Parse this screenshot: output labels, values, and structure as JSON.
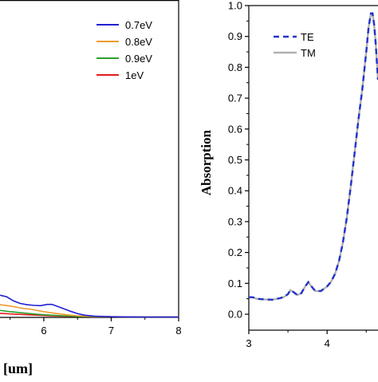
{
  "chart_data": [
    {
      "type": "line",
      "title": "",
      "xlabel": "[um]",
      "ylabel": "",
      "xlim": [
        5.35,
        8.0
      ],
      "ylim": [
        0.0,
        1.0
      ],
      "x_ticks": [
        6,
        7,
        8
      ],
      "x_tick_labels": [
        "6",
        "7",
        "8"
      ],
      "legend_position": "top-right",
      "series": [
        {
          "name": "0.7eV",
          "color": "#1f1fd4",
          "x": [
            5.35,
            5.45,
            5.55,
            5.65,
            5.75,
            5.85,
            5.95,
            6.05,
            6.12,
            6.2,
            6.3,
            6.4,
            6.5,
            6.6,
            6.75,
            7.0,
            7.5,
            8.0
          ],
          "y": [
            0.07,
            0.065,
            0.052,
            0.044,
            0.04,
            0.038,
            0.037,
            0.041,
            0.041,
            0.035,
            0.027,
            0.019,
            0.012,
            0.007,
            0.004,
            0.002,
            0.001,
            0.001
          ]
        },
        {
          "name": "0.8eV",
          "color": "#ee9a2e",
          "x": [
            5.35,
            5.5,
            5.6,
            5.7,
            5.8,
            5.9,
            6.0,
            6.1,
            6.2,
            6.35,
            6.5,
            6.75,
            7.0,
            7.5,
            8.0
          ],
          "y": [
            0.04,
            0.036,
            0.032,
            0.028,
            0.026,
            0.022,
            0.018,
            0.015,
            0.012,
            0.008,
            0.005,
            0.003,
            0.002,
            0.001,
            0.001
          ]
        },
        {
          "name": "0.9eV",
          "color": "#2ca02c",
          "x": [
            5.35,
            5.5,
            5.7,
            5.9,
            6.1,
            6.3,
            6.5,
            7.0,
            7.5,
            8.0
          ],
          "y": [
            0.022,
            0.018,
            0.014,
            0.01,
            0.007,
            0.005,
            0.003,
            0.002,
            0.001,
            0.001
          ]
        },
        {
          "name": "1eV",
          "color": "#e31a1c",
          "x": [
            5.35,
            5.5,
            5.7,
            5.9,
            6.1,
            6.3,
            6.6,
            7.0,
            7.5,
            8.0
          ],
          "y": [
            0.013,
            0.011,
            0.009,
            0.007,
            0.005,
            0.004,
            0.003,
            0.002,
            0.001,
            0.001
          ]
        }
      ]
    },
    {
      "type": "line",
      "title": "",
      "xlabel": "",
      "ylabel": "Absorption",
      "xlim": [
        3.0,
        4.65
      ],
      "ylim": [
        -0.05,
        1.0
      ],
      "x_ticks": [
        3,
        4
      ],
      "x_tick_labels": [
        "3",
        "4"
      ],
      "y_ticks": [
        0.0,
        0.1,
        0.2,
        0.3,
        0.4,
        0.5,
        0.6,
        0.7,
        0.8,
        0.9,
        1.0
      ],
      "y_tick_labels": [
        "0.0",
        "0.1",
        "0.2",
        "0.3",
        "0.4",
        "0.5",
        "0.6",
        "0.7",
        "0.8",
        "0.9",
        "1.0"
      ],
      "legend_position": "top-left",
      "series": [
        {
          "name": "TM",
          "color": "#b0b0b0",
          "dash": "solid",
          "x": [
            3.0,
            3.05,
            3.1,
            3.2,
            3.3,
            3.4,
            3.45,
            3.5,
            3.53,
            3.57,
            3.62,
            3.67,
            3.72,
            3.76,
            3.8,
            3.85,
            3.92,
            4.0,
            4.05,
            4.1,
            4.15,
            4.2,
            4.25,
            4.3,
            4.35,
            4.4,
            4.45,
            4.5,
            4.53,
            4.56,
            4.58,
            4.6,
            4.62,
            4.64,
            4.65
          ],
          "y": [
            0.055,
            0.055,
            0.05,
            0.048,
            0.047,
            0.052,
            0.056,
            0.065,
            0.078,
            0.072,
            0.062,
            0.068,
            0.09,
            0.104,
            0.09,
            0.075,
            0.075,
            0.09,
            0.105,
            0.13,
            0.17,
            0.23,
            0.31,
            0.41,
            0.52,
            0.63,
            0.73,
            0.85,
            0.93,
            0.975,
            0.975,
            0.94,
            0.88,
            0.8,
            0.76
          ]
        },
        {
          "name": "TE",
          "color": "#2233cc",
          "dash": "dashed",
          "x": [
            3.0,
            3.05,
            3.1,
            3.2,
            3.3,
            3.4,
            3.45,
            3.5,
            3.53,
            3.57,
            3.62,
            3.67,
            3.72,
            3.76,
            3.8,
            3.85,
            3.92,
            4.0,
            4.05,
            4.1,
            4.15,
            4.2,
            4.25,
            4.3,
            4.35,
            4.4,
            4.45,
            4.5,
            4.53,
            4.56,
            4.58,
            4.6,
            4.62,
            4.64,
            4.65
          ],
          "y": [
            0.055,
            0.055,
            0.05,
            0.048,
            0.047,
            0.052,
            0.056,
            0.065,
            0.078,
            0.072,
            0.062,
            0.068,
            0.09,
            0.104,
            0.09,
            0.075,
            0.075,
            0.09,
            0.105,
            0.13,
            0.17,
            0.23,
            0.31,
            0.41,
            0.52,
            0.63,
            0.73,
            0.85,
            0.93,
            0.975,
            0.975,
            0.94,
            0.88,
            0.8,
            0.76
          ]
        }
      ],
      "legend_order": [
        "TE",
        "TM"
      ]
    }
  ]
}
